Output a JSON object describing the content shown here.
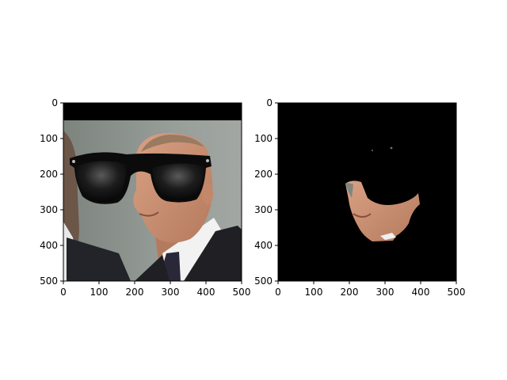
{
  "chart_data": [
    {
      "type": "image",
      "xlim": [
        0,
        500
      ],
      "ylim": [
        500,
        0
      ],
      "x_ticks": [
        0,
        100,
        200,
        300,
        400,
        500
      ],
      "y_ticks": [
        0,
        100,
        200,
        300,
        400,
        500
      ],
      "x_tick_labels": [
        "0",
        "100",
        "200",
        "300",
        "400",
        "500"
      ],
      "y_tick_labels": [
        "0",
        "100",
        "200",
        "300",
        "400",
        "500"
      ],
      "grid": false,
      "content": "photo of a man's face with black sunglasses overlay",
      "colors": {
        "background_wall": "#8f9590",
        "skin": "#c88d70",
        "suit": "#1e1e22",
        "lens": "#111111"
      }
    },
    {
      "type": "image",
      "xlim": [
        0,
        500
      ],
      "ylim": [
        500,
        0
      ],
      "x_ticks": [
        0,
        100,
        200,
        300,
        400,
        500
      ],
      "y_ticks": [
        0,
        100,
        200,
        300,
        400,
        500
      ],
      "x_tick_labels": [
        "0",
        "100",
        "200",
        "300",
        "400",
        "500"
      ],
      "y_tick_labels": [
        "0",
        "100",
        "200",
        "300",
        "400",
        "500"
      ],
      "grid": false,
      "content": "masked face region on black background",
      "colors": {
        "background": "#000000",
        "skin": "#c88d70"
      }
    }
  ]
}
